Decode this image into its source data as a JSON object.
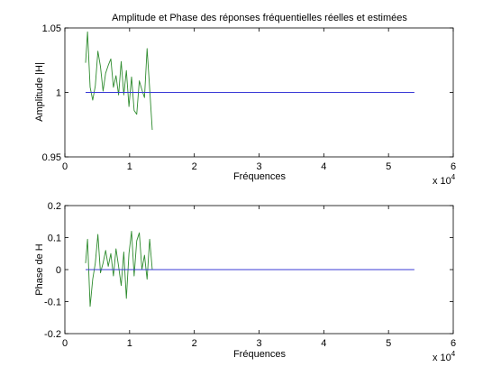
{
  "colors": {
    "estimated": "#2e8b2e",
    "real": "#3b3bd6",
    "axes": "#000000",
    "background": "#ffffff"
  },
  "chart_data": [
    {
      "type": "line",
      "title": "Amplitude et Phase des réponses fréquentielles réelles et estimées",
      "xlabel": "Fréquences",
      "ylabel": "Amplitude |H|",
      "xlim": [
        0,
        60000
      ],
      "ylim": [
        0.95,
        1.05
      ],
      "xticks": [
        0,
        10000,
        20000,
        30000,
        40000,
        50000,
        60000
      ],
      "xtick_labels": [
        "0",
        "1",
        "2",
        "3",
        "4",
        "5",
        "6"
      ],
      "yticks": [
        0.95,
        1,
        1.05
      ],
      "ytick_labels": [
        "0.95",
        "1",
        "1.05"
      ],
      "x_multiplier": {
        "base": "x 10",
        "exponent": "4"
      },
      "grid": false,
      "series": [
        {
          "key": "estimated",
          "x": [
            3200,
            3500,
            3900,
            4300,
            4700,
            5100,
            5500,
            5900,
            6300,
            6700,
            7100,
            7500,
            7900,
            8300,
            8700,
            9100,
            9500,
            9900,
            10300,
            10700,
            11100,
            11500,
            11900,
            12300,
            12700,
            13100,
            13500
          ],
          "values": [
            1.023,
            1.047,
            1.004,
            0.994,
            1.005,
            1.032,
            1.02,
            1.001,
            1.015,
            1.021,
            1.026,
            1.004,
            1.013,
            0.998,
            1.024,
            0.998,
            1.017,
            0.989,
            1.012,
            0.986,
            0.983,
            1.009,
            1.002,
            0.996,
            1.034,
            1.003,
            0.971
          ]
        },
        {
          "key": "real",
          "x": [
            3200,
            54000
          ],
          "values": [
            1,
            1
          ]
        }
      ]
    },
    {
      "type": "line",
      "title": "",
      "xlabel": "Fréquences",
      "ylabel": "Phase de H",
      "xlim": [
        0,
        60000
      ],
      "ylim": [
        -0.2,
        0.2
      ],
      "xticks": [
        0,
        10000,
        20000,
        30000,
        40000,
        50000,
        60000
      ],
      "xtick_labels": [
        "0",
        "1",
        "2",
        "3",
        "4",
        "5",
        "6"
      ],
      "yticks": [
        -0.2,
        -0.1,
        0,
        0.1,
        0.2
      ],
      "ytick_labels": [
        "-0.2",
        "-0.1",
        "0",
        "0.1",
        "0.2"
      ],
      "x_multiplier": {
        "base": "x 10",
        "exponent": "4"
      },
      "grid": false,
      "series": [
        {
          "key": "estimated",
          "x": [
            3200,
            3500,
            3900,
            4300,
            4700,
            5100,
            5500,
            5900,
            6300,
            6700,
            7100,
            7500,
            7900,
            8300,
            8700,
            9100,
            9500,
            9900,
            10300,
            10700,
            11100,
            11500,
            11900,
            12300,
            12700,
            13100,
            13500
          ],
          "values": [
            0.02,
            0.095,
            -0.115,
            -0.03,
            0.02,
            0.11,
            -0.01,
            0.02,
            0.06,
            0.01,
            0.05,
            -0.02,
            0.065,
            0.01,
            -0.05,
            0.055,
            -0.09,
            0.05,
            0.12,
            -0.02,
            0.09,
            0.115,
            0.0,
            0.045,
            -0.03,
            0.095,
            0.0
          ]
        },
        {
          "key": "real",
          "x": [
            3200,
            54000
          ],
          "values": [
            0,
            0
          ]
        }
      ]
    }
  ]
}
